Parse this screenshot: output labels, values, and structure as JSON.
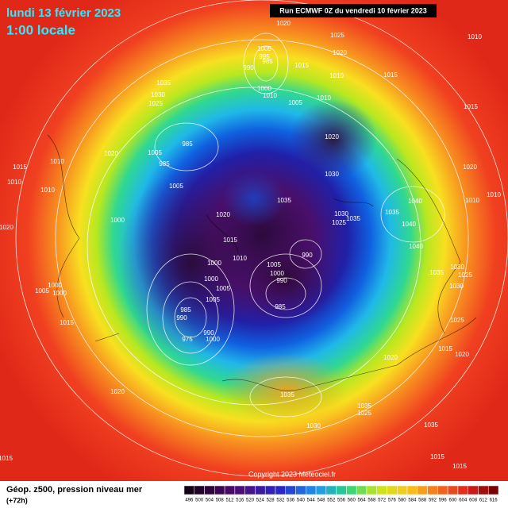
{
  "header": {
    "title": "lundi 13 février 2023",
    "subtitle": "1:00 locale",
    "run": "Run ECMWF 0Z du vendredi 10 février 2023"
  },
  "footer": {
    "caption": "Géop. z500, pression niveau mer",
    "lead_time": "(+72h)",
    "copyright": "Copyright 2023 Meteociel.fr"
  },
  "colorbar": {
    "values": [
      496,
      500,
      504,
      508,
      512,
      516,
      520,
      524,
      528,
      532,
      536,
      540,
      544,
      548,
      552,
      556,
      560,
      564,
      568,
      572,
      576,
      580,
      584,
      588,
      592,
      596,
      600,
      604,
      608,
      612,
      616
    ]
  },
  "isobar_labels": [
    1020,
    1025,
    1010,
    1020,
    1005,
    995,
    985,
    990,
    1000,
    1015,
    1010,
    1015,
    1035,
    1030,
    1025,
    1010,
    1005,
    1010,
    1015,
    1015,
    1010,
    1020,
    1005,
    985,
    985,
    1020,
    1020,
    1030,
    1010,
    1010,
    1005,
    1035,
    1020,
    1015,
    1010,
    1000,
    1020,
    1030,
    1035,
    1025,
    1035,
    1040,
    1040,
    1040,
    1010,
    1010,
    990,
    1005,
    1000,
    1000,
    990,
    1000,
    1005,
    1005,
    1035,
    1030,
    1025,
    1030,
    1000,
    1005,
    1000,
    985,
    985,
    990,
    1015,
    990,
    1000,
    975,
    1025,
    1015,
    1020,
    1020,
    1020,
    1035,
    1035,
    1025,
    1030,
    1035,
    1015,
    1015,
    1015
  ]
}
